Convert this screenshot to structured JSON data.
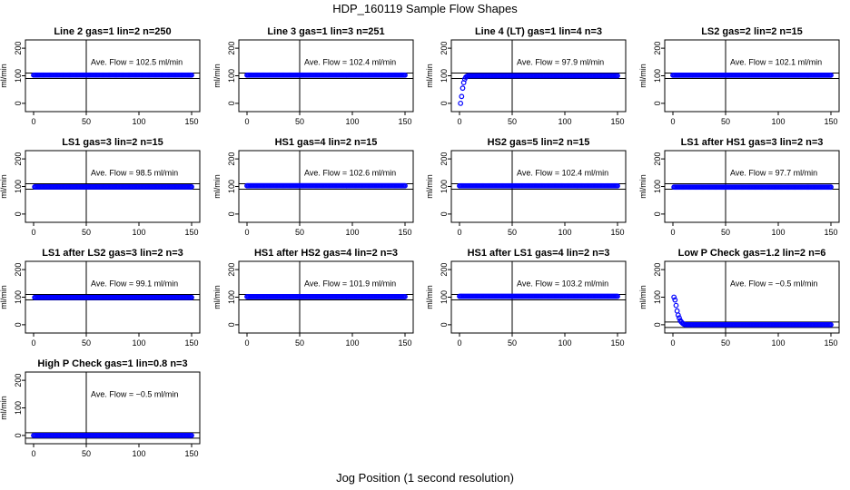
{
  "figure": {
    "title": "HDP_160119  Sample Flow Shapes",
    "xlabel": "Jog Position (1 second resolution)",
    "point_color": "#0000ff"
  },
  "chart_data": [
    {
      "type": "scatter",
      "title": "Line 2 gas=1 lin=2 n=250",
      "ylabel": "ml/min",
      "annotation": "Ave. Flow = 102.5  ml/min",
      "xlim": [
        0,
        150
      ],
      "ylim": [
        -30,
        230
      ],
      "xticks": [
        0,
        50,
        100,
        150
      ],
      "yticks": [
        0,
        100,
        200
      ],
      "vline_x": 50,
      "hlines_y": [
        90,
        110
      ],
      "shape": "flat",
      "level": 102.5,
      "x_range": [
        0,
        150
      ]
    },
    {
      "type": "scatter",
      "title": "Line 3 gas=1 lin=3 n=251",
      "ylabel": "ml/min",
      "annotation": "Ave. Flow = 102.4  ml/min",
      "xlim": [
        0,
        150
      ],
      "ylim": [
        -30,
        230
      ],
      "xticks": [
        0,
        50,
        100,
        150
      ],
      "yticks": [
        0,
        100,
        200
      ],
      "vline_x": 50,
      "hlines_y": [
        90,
        110
      ],
      "shape": "flat",
      "level": 102.4,
      "x_range": [
        0,
        150
      ]
    },
    {
      "type": "scatter",
      "title": "Line 4 (LT) gas=1 lin=4 n=3",
      "ylabel": "ml/min",
      "annotation": "Ave. Flow = 97.9  ml/min",
      "xlim": [
        0,
        150
      ],
      "ylim": [
        -30,
        230
      ],
      "xticks": [
        0,
        50,
        100,
        150
      ],
      "yticks": [
        0,
        100,
        200
      ],
      "vline_x": 50,
      "hlines_y": [
        90,
        110
      ],
      "shape": "rise",
      "level": 100,
      "x_range": [
        1,
        150
      ],
      "transient": [
        [
          1,
          0
        ],
        [
          2,
          25
        ],
        [
          3,
          55
        ],
        [
          4,
          75
        ],
        [
          5,
          88
        ],
        [
          6,
          95
        ],
        [
          7,
          98
        ],
        [
          8,
          100
        ]
      ]
    },
    {
      "type": "scatter",
      "title": "LS2 gas=2 lin=2 n=15",
      "ylabel": "ml/min",
      "annotation": "Ave. Flow = 102.1  ml/min",
      "xlim": [
        0,
        150
      ],
      "ylim": [
        -30,
        230
      ],
      "xticks": [
        0,
        50,
        100,
        150
      ],
      "yticks": [
        0,
        100,
        200
      ],
      "vline_x": 50,
      "hlines_y": [
        90,
        110
      ],
      "shape": "flat",
      "level": 102.1,
      "x_range": [
        0,
        150
      ]
    },
    {
      "type": "scatter",
      "title": "LS1 gas=3 lin=2 n=15",
      "ylabel": "ml/min",
      "annotation": "Ave. Flow = 98.5  ml/min",
      "xlim": [
        0,
        150
      ],
      "ylim": [
        -30,
        230
      ],
      "xticks": [
        0,
        50,
        100,
        150
      ],
      "yticks": [
        0,
        100,
        200
      ],
      "vline_x": 50,
      "hlines_y": [
        90,
        110
      ],
      "shape": "flat",
      "level": 98.5,
      "x_range": [
        1,
        150
      ]
    },
    {
      "type": "scatter",
      "title": "HS1 gas=4 lin=2 n=15",
      "ylabel": "ml/min",
      "annotation": "Ave. Flow = 102.6  ml/min",
      "xlim": [
        0,
        150
      ],
      "ylim": [
        -30,
        230
      ],
      "xticks": [
        0,
        50,
        100,
        150
      ],
      "yticks": [
        0,
        100,
        200
      ],
      "vline_x": 50,
      "hlines_y": [
        90,
        110
      ],
      "shape": "flat",
      "level": 102.6,
      "x_range": [
        0,
        150
      ]
    },
    {
      "type": "scatter",
      "title": "HS2 gas=5 lin=2 n=15",
      "ylabel": "ml/min",
      "annotation": "Ave. Flow = 102.4  ml/min",
      "xlim": [
        0,
        150
      ],
      "ylim": [
        -30,
        230
      ],
      "xticks": [
        0,
        50,
        100,
        150
      ],
      "yticks": [
        0,
        100,
        200
      ],
      "vline_x": 50,
      "hlines_y": [
        90,
        110
      ],
      "shape": "flat",
      "level": 102.4,
      "x_range": [
        0,
        150
      ]
    },
    {
      "type": "scatter",
      "title": "LS1 after HS1 gas=3 lin=2 n=3",
      "ylabel": "ml/min",
      "annotation": "Ave. Flow = 97.7  ml/min",
      "xlim": [
        0,
        150
      ],
      "ylim": [
        -30,
        230
      ],
      "xticks": [
        0,
        50,
        100,
        150
      ],
      "yticks": [
        0,
        100,
        200
      ],
      "vline_x": 50,
      "hlines_y": [
        90,
        110
      ],
      "shape": "flat",
      "level": 97.7,
      "x_range": [
        1,
        150
      ]
    },
    {
      "type": "scatter",
      "title": "LS1 after LS2 gas=3 lin=2 n=3",
      "ylabel": "ml/min",
      "annotation": "Ave. Flow = 99.1  ml/min",
      "xlim": [
        0,
        150
      ],
      "ylim": [
        -30,
        230
      ],
      "xticks": [
        0,
        50,
        100,
        150
      ],
      "yticks": [
        0,
        100,
        200
      ],
      "vline_x": 50,
      "hlines_y": [
        90,
        110
      ],
      "shape": "flat",
      "level": 99.1,
      "x_range": [
        1,
        150
      ]
    },
    {
      "type": "scatter",
      "title": "HS1 after HS2 gas=4 lin=2 n=3",
      "ylabel": "ml/min",
      "annotation": "Ave. Flow = 101.9  ml/min",
      "xlim": [
        0,
        150
      ],
      "ylim": [
        -30,
        230
      ],
      "xticks": [
        0,
        50,
        100,
        150
      ],
      "yticks": [
        0,
        100,
        200
      ],
      "vline_x": 50,
      "hlines_y": [
        90,
        110
      ],
      "shape": "flat",
      "level": 101.9,
      "x_range": [
        0,
        150
      ]
    },
    {
      "type": "scatter",
      "title": "HS1 after LS1 gas=4 lin=2 n=3",
      "ylabel": "ml/min",
      "annotation": "Ave. Flow = 103.2  ml/min",
      "xlim": [
        0,
        150
      ],
      "ylim": [
        -30,
        230
      ],
      "xticks": [
        0,
        50,
        100,
        150
      ],
      "yticks": [
        0,
        100,
        200
      ],
      "vline_x": 50,
      "hlines_y": [
        90,
        110
      ],
      "shape": "flat",
      "level": 103.2,
      "x_range": [
        0,
        150
      ]
    },
    {
      "type": "scatter",
      "title": "Low P Check gas=1.2 lin=2 n=6",
      "ylabel": "ml/min",
      "annotation": "Ave. Flow = −0.5  ml/min",
      "xlim": [
        0,
        150
      ],
      "ylim": [
        -30,
        230
      ],
      "xticks": [
        0,
        50,
        100,
        150
      ],
      "yticks": [
        0,
        100,
        200
      ],
      "vline_x": 50,
      "hlines_y": [
        -10,
        10
      ],
      "shape": "decay",
      "level": 0,
      "x_range": [
        1,
        150
      ],
      "transient": [
        [
          1,
          100
        ],
        [
          2,
          90
        ],
        [
          3,
          70
        ],
        [
          4,
          50
        ],
        [
          5,
          35
        ],
        [
          6,
          25
        ],
        [
          7,
          15
        ],
        [
          8,
          10
        ],
        [
          9,
          6
        ],
        [
          10,
          3
        ],
        [
          11,
          1
        ]
      ]
    },
    {
      "type": "scatter",
      "title": "High P Check gas=1 lin=0.8 n=3",
      "ylabel": "ml/min",
      "annotation": "Ave. Flow = −0.5  ml/min",
      "xlim": [
        0,
        150
      ],
      "ylim": [
        -30,
        230
      ],
      "xticks": [
        0,
        50,
        100,
        150
      ],
      "yticks": [
        0,
        100,
        200
      ],
      "vline_x": 50,
      "hlines_y": [
        -10,
        10
      ],
      "shape": "flat",
      "level": 0,
      "x_range": [
        0,
        150
      ]
    }
  ]
}
